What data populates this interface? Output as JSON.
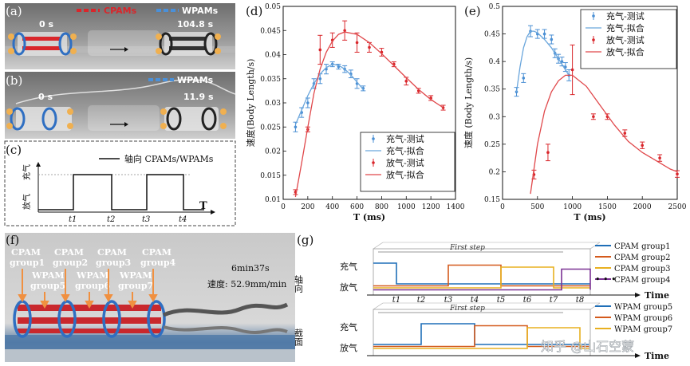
{
  "figure": {
    "panels": {
      "a": {
        "letter": "(a)",
        "legend1": "CPAMs",
        "legend2": "WPAMs",
        "time_start": "0 s",
        "time_end": "104.8 s",
        "colors": {
          "cpam": "#d9262b",
          "wpam": "#4a90d9"
        }
      },
      "b": {
        "letter": "(b)",
        "legend": "WPAMs",
        "time_start": "0 s",
        "time_end": "11.9 s"
      },
      "c": {
        "letter": "(c)",
        "legend": "轴向 CPAMs/WPAMs",
        "y_top": "充气",
        "y_bottom": "放气",
        "x_axis": "T",
        "ticks": [
          "t1",
          "t2",
          "t3",
          "t4"
        ]
      },
      "d": {
        "letter": "(d)"
      },
      "e": {
        "letter": "(e)"
      },
      "f": {
        "letter": "(f)",
        "cpam_labels": [
          {
            "l1": "CPAM",
            "l2": "group1"
          },
          {
            "l1": "CPAM",
            "l2": "group2"
          },
          {
            "l1": "CPAM",
            "l2": "group3"
          },
          {
            "l1": "CPAM",
            "l2": "group4"
          }
        ],
        "wpam_labels": [
          {
            "l1": "WPAM",
            "l2": "group5"
          },
          {
            "l1": "WPAM",
            "l2": "group6"
          },
          {
            "l1": "WPAM",
            "l2": "group7"
          }
        ],
        "time": "6min37s",
        "speed": "速度: 52.9mm/min"
      },
      "g": {
        "letter": "(g)",
        "first_step": "First step",
        "top_side": "轴向",
        "bottom_side": "截面",
        "y_top": "充气",
        "y_bottom": "放气",
        "x_axis": "Time",
        "ellipsis": "• • •",
        "ticks": [
          "t1",
          "t2",
          "t3",
          "t4",
          "t5",
          "t6",
          "t7",
          "t8"
        ],
        "legend_top": [
          {
            "name": "CPAM group1",
            "color": "#1f6fb8"
          },
          {
            "name": "CPAM group2",
            "color": "#d45a1c"
          },
          {
            "name": "CPAM group3",
            "color": "#e8b020"
          },
          {
            "name": "CPAM group4",
            "color": "#7b3294"
          }
        ],
        "legend_bottom": [
          {
            "name": "WPAM group5",
            "color": "#1f6fb8"
          },
          {
            "name": "WPAM group6",
            "color": "#d45a1c"
          },
          {
            "name": "WPAM group7",
            "color": "#e8b020"
          }
        ]
      },
      "watermark": "知乎 @山石空蒙"
    }
  },
  "chart_data": [
    {
      "type": "line",
      "panel": "d",
      "xlabel": "T (ms)",
      "ylabel": "速度(Body Length/s)",
      "xlim": [
        0,
        1400
      ],
      "ylim": [
        0.01,
        0.05
      ],
      "xticks": [
        0,
        200,
        400,
        600,
        800,
        1000,
        1200,
        1400
      ],
      "yticks": [
        0.01,
        0.015,
        0.02,
        0.025,
        0.03,
        0.035,
        0.04,
        0.045,
        0.05
      ],
      "legend_position": "bottom-right",
      "series": [
        {
          "name": "充气-测试",
          "kind": "errorbar",
          "color": "#4a8fd4",
          "x": [
            100,
            150,
            200,
            250,
            300,
            350,
            400,
            450,
            500,
            550,
            600,
            650
          ],
          "y": [
            0.025,
            0.028,
            0.03,
            0.034,
            0.035,
            0.037,
            0.038,
            0.0375,
            0.037,
            0.036,
            0.034,
            0.033
          ],
          "err": [
            0.001,
            0.001,
            0.001,
            0.001,
            0.001,
            0.001,
            0.0005,
            0.0005,
            0.0007,
            0.0008,
            0.001,
            0.0005
          ]
        },
        {
          "name": "充气-拟合",
          "kind": "line",
          "color": "#6aa6dc",
          "x": [
            100,
            150,
            200,
            250,
            300,
            350,
            400,
            450,
            500,
            550,
            600,
            650
          ],
          "y": [
            0.0255,
            0.0285,
            0.0315,
            0.034,
            0.036,
            0.0373,
            0.038,
            0.0378,
            0.037,
            0.0358,
            0.0343,
            0.0328
          ]
        },
        {
          "name": "放气-测试",
          "kind": "errorbar",
          "color": "#d9262b",
          "x": [
            100,
            200,
            300,
            400,
            500,
            600,
            700,
            800,
            900,
            1000,
            1100,
            1200,
            1300
          ],
          "y": [
            0.0115,
            0.0245,
            0.041,
            0.043,
            0.045,
            0.0425,
            0.0415,
            0.0405,
            0.038,
            0.0345,
            0.0325,
            0.031,
            0.029
          ],
          "err": [
            0.0005,
            0.0005,
            0.003,
            0.0015,
            0.002,
            0.002,
            0.001,
            0.0008,
            0.0005,
            0.0008,
            0.0005,
            0.0005,
            0.0005
          ]
        },
        {
          "name": "放气-拟合",
          "kind": "line",
          "color": "#e0484b",
          "x": [
            100,
            150,
            200,
            250,
            300,
            350,
            400,
            450,
            500,
            600,
            700,
            800,
            900,
            1000,
            1100,
            1200,
            1300
          ],
          "y": [
            0.0105,
            0.0175,
            0.025,
            0.032,
            0.037,
            0.0405,
            0.0428,
            0.0442,
            0.0447,
            0.0442,
            0.0425,
            0.0402,
            0.0377,
            0.0352,
            0.0328,
            0.0307,
            0.029
          ]
        }
      ]
    },
    {
      "type": "line",
      "panel": "e",
      "xlabel": "T (ms)",
      "ylabel": "速度 (Body Length/s)",
      "xlim": [
        0,
        2500
      ],
      "ylim": [
        0.15,
        0.5
      ],
      "xticks": [
        0,
        500,
        1000,
        1500,
        2000,
        2500
      ],
      "yticks": [
        0.15,
        0.2,
        0.25,
        0.3,
        0.35,
        0.4,
        0.45,
        0.5
      ],
      "legend_position": "top-right",
      "series": [
        {
          "name": "充气-测试",
          "kind": "errorbar",
          "color": "#4a8fd4",
          "x": [
            200,
            300,
            400,
            500,
            600,
            700,
            750,
            800,
            850,
            900,
            950
          ],
          "y": [
            0.345,
            0.37,
            0.455,
            0.45,
            0.45,
            0.44,
            0.415,
            0.405,
            0.4,
            0.39,
            0.375
          ],
          "err": [
            0.008,
            0.008,
            0.01,
            0.008,
            0.008,
            0.008,
            0.008,
            0.008,
            0.008,
            0.008,
            0.01
          ]
        },
        {
          "name": "充气-拟合",
          "kind": "line",
          "color": "#6aa6dc",
          "x": [
            200,
            250,
            300,
            350,
            400,
            450,
            500,
            600,
            700,
            800,
            900,
            950
          ],
          "y": [
            0.345,
            0.39,
            0.425,
            0.445,
            0.455,
            0.455,
            0.452,
            0.44,
            0.425,
            0.405,
            0.385,
            0.375
          ]
        },
        {
          "name": "放气-测试",
          "kind": "errorbar",
          "color": "#d9262b",
          "x": [
            450,
            650,
            1000,
            1300,
            1500,
            1750,
            2000,
            2250,
            2500
          ],
          "y": [
            0.195,
            0.235,
            0.385,
            0.3,
            0.3,
            0.27,
            0.248,
            0.225,
            0.196
          ],
          "err": [
            0.008,
            0.015,
            0.045,
            0.005,
            0.005,
            0.006,
            0.006,
            0.006,
            0.006
          ]
        },
        {
          "name": "放气-拟合",
          "kind": "line",
          "color": "#e0484b",
          "x": [
            400,
            500,
            600,
            700,
            800,
            900,
            1000,
            1200,
            1400,
            1600,
            1800,
            2000,
            2200,
            2400,
            2500
          ],
          "y": [
            0.16,
            0.25,
            0.31,
            0.345,
            0.365,
            0.375,
            0.375,
            0.355,
            0.32,
            0.285,
            0.255,
            0.235,
            0.22,
            0.205,
            0.2
          ]
        }
      ]
    }
  ]
}
